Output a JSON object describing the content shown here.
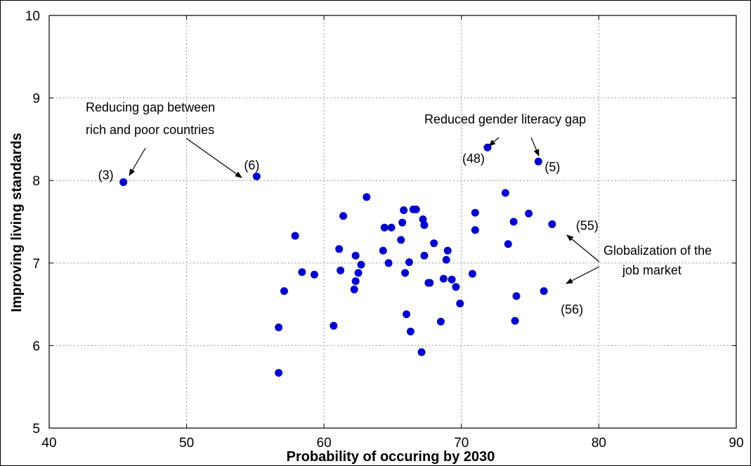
{
  "chart_data": {
    "type": "scatter",
    "xlabel": "Probability of occuring by 2030",
    "ylabel": "Improving living standards",
    "xlim": [
      40,
      90
    ],
    "ylim": [
      5,
      10
    ],
    "grid": true,
    "x_ticks": [
      "40",
      "50",
      "60",
      "70",
      "80",
      "90"
    ],
    "y_ticks": [
      "5",
      "6",
      "7",
      "8",
      "9",
      "10"
    ],
    "marker_color": "#0000cc",
    "points": [
      {
        "x": 45.4,
        "y": 7.98,
        "label": "(3)"
      },
      {
        "x": 55.1,
        "y": 8.05,
        "label": "(6)"
      },
      {
        "x": 71.9,
        "y": 8.4,
        "label": "(48)"
      },
      {
        "x": 75.6,
        "y": 8.23,
        "label": "(5)"
      },
      {
        "x": 76.6,
        "y": 7.47,
        "label": "(55)"
      },
      {
        "x": 76.0,
        "y": 6.66,
        "label": "(56)"
      },
      {
        "x": 56.7,
        "y": 5.67
      },
      {
        "x": 56.7,
        "y": 6.22
      },
      {
        "x": 57.1,
        "y": 6.66
      },
      {
        "x": 57.9,
        "y": 7.33
      },
      {
        "x": 58.4,
        "y": 6.89
      },
      {
        "x": 59.3,
        "y": 6.86
      },
      {
        "x": 60.7,
        "y": 6.24
      },
      {
        "x": 61.1,
        "y": 7.17
      },
      {
        "x": 61.2,
        "y": 6.91
      },
      {
        "x": 61.4,
        "y": 7.57
      },
      {
        "x": 62.2,
        "y": 6.68
      },
      {
        "x": 62.3,
        "y": 6.78
      },
      {
        "x": 62.3,
        "y": 7.09
      },
      {
        "x": 62.5,
        "y": 6.88
      },
      {
        "x": 62.7,
        "y": 6.98
      },
      {
        "x": 63.1,
        "y": 7.8
      },
      {
        "x": 64.3,
        "y": 7.15
      },
      {
        "x": 64.4,
        "y": 7.43
      },
      {
        "x": 64.7,
        "y": 7.0
      },
      {
        "x": 64.9,
        "y": 7.43
      },
      {
        "x": 65.6,
        "y": 7.28
      },
      {
        "x": 65.7,
        "y": 7.49
      },
      {
        "x": 65.8,
        "y": 7.64
      },
      {
        "x": 65.9,
        "y": 6.88
      },
      {
        "x": 66.0,
        "y": 6.38
      },
      {
        "x": 66.2,
        "y": 7.01
      },
      {
        "x": 66.3,
        "y": 6.17
      },
      {
        "x": 66.5,
        "y": 7.65
      },
      {
        "x": 66.7,
        "y": 7.65
      },
      {
        "x": 67.1,
        "y": 5.92
      },
      {
        "x": 67.2,
        "y": 7.53
      },
      {
        "x": 67.3,
        "y": 7.46
      },
      {
        "x": 67.3,
        "y": 7.09
      },
      {
        "x": 67.6,
        "y": 6.76
      },
      {
        "x": 67.7,
        "y": 6.76
      },
      {
        "x": 68.0,
        "y": 7.24
      },
      {
        "x": 68.5,
        "y": 6.29
      },
      {
        "x": 68.7,
        "y": 6.81
      },
      {
        "x": 68.9,
        "y": 7.04
      },
      {
        "x": 69.0,
        "y": 7.15
      },
      {
        "x": 69.3,
        "y": 6.8
      },
      {
        "x": 69.6,
        "y": 6.71
      },
      {
        "x": 69.9,
        "y": 6.51
      },
      {
        "x": 70.8,
        "y": 6.87
      },
      {
        "x": 71.0,
        "y": 7.4
      },
      {
        "x": 71.0,
        "y": 7.61
      },
      {
        "x": 73.2,
        "y": 7.85
      },
      {
        "x": 73.4,
        "y": 7.23
      },
      {
        "x": 73.8,
        "y": 7.5
      },
      {
        "x": 73.9,
        "y": 6.3
      },
      {
        "x": 74.0,
        "y": 6.6
      },
      {
        "x": 74.9,
        "y": 7.6
      }
    ],
    "annotations": [
      {
        "lines": [
          "Reducing gap between",
          "rich and poor countries"
        ],
        "targets": [
          "(3)",
          "(6)"
        ]
      },
      {
        "lines": [
          "Reduced gender literacy gap"
        ],
        "targets": [
          "(48)",
          "(5)"
        ]
      },
      {
        "lines": [
          "Globalization of the",
          "job market"
        ],
        "targets": [
          "(55)",
          "(56)"
        ]
      }
    ]
  }
}
